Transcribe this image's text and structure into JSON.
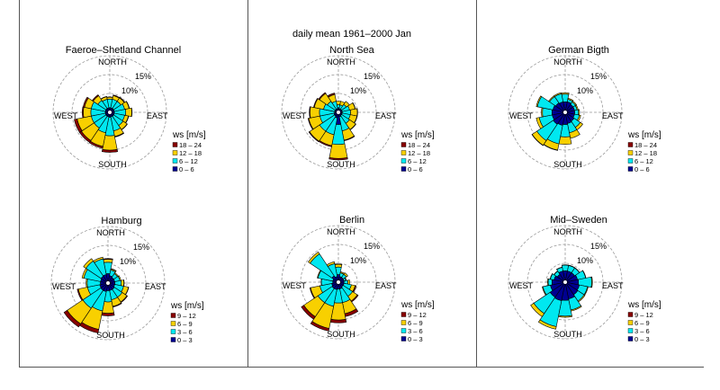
{
  "suptitle": "daily mean 1961–2000 Jan",
  "direction_labels": {
    "north": "NORTH",
    "south": "SOUTH",
    "east": "EAST",
    "west": "WEST"
  },
  "ring_labels": [
    "10%",
    "15%"
  ],
  "legend_title": "ws [m/s]",
  "colors": [
    "#000090",
    "#00e8f0",
    "#f8d000",
    "#880000"
  ],
  "chart_data": [
    {
      "type": "windrose",
      "title": "Faeroe–Shetland Channel",
      "legend": [
        "18 – 24",
        "12 – 18",
        "6 – 12",
        "0 – 6"
      ],
      "rings_percent": [
        5,
        10,
        15
      ],
      "directions": [
        "N",
        "NNE",
        "NE",
        "ENE",
        "E",
        "ESE",
        "SE",
        "SSE",
        "S",
        "SSW",
        "SW",
        "WSW",
        "W",
        "WNW",
        "NW",
        "NNW"
      ],
      "cumulative_percent": [
        [
          1.2,
          3.5,
          4.0,
          4.1
        ],
        [
          1.2,
          3.5,
          4.5,
          4.7
        ],
        [
          1.2,
          3.5,
          4.6,
          4.8
        ],
        [
          1.2,
          4.0,
          5.2,
          5.3
        ],
        [
          1.2,
          4.2,
          5.8,
          5.9
        ],
        [
          1.2,
          4.0,
          5.0,
          5.1
        ],
        [
          1.2,
          4.2,
          5.5,
          5.6
        ],
        [
          1.2,
          5.0,
          6.5,
          6.7
        ],
        [
          1.3,
          6.2,
          10.0,
          10.6
        ],
        [
          1.2,
          5.5,
          9.2,
          9.7
        ],
        [
          1.2,
          5.0,
          9.0,
          9.6
        ],
        [
          1.2,
          5.0,
          8.8,
          9.6
        ],
        [
          1.2,
          5.0,
          7.0,
          7.3
        ],
        [
          1.2,
          5.0,
          6.8,
          7.2
        ],
        [
          1.2,
          3.8,
          5.3,
          5.6
        ],
        [
          1.2,
          3.5,
          4.2,
          4.3
        ]
      ]
    },
    {
      "type": "windrose",
      "title": "North Sea",
      "legend": [
        "18 – 24",
        "12 – 18",
        "6 – 12",
        "0 – 6"
      ],
      "rings_percent": [
        5,
        10,
        15
      ],
      "directions": [
        "N",
        "NNE",
        "NE",
        "ENE",
        "E",
        "ESE",
        "SE",
        "SSE",
        "S",
        "SSW",
        "SW",
        "WSW",
        "W",
        "WNW",
        "NW",
        "NNW"
      ],
      "cumulative_percent": [
        [
          1.2,
          2.0,
          3.0,
          3.0
        ],
        [
          1.0,
          2.0,
          3.0,
          3.0
        ],
        [
          1.0,
          2.5,
          3.5,
          3.5
        ],
        [
          1.0,
          3.0,
          4.5,
          4.6
        ],
        [
          1.0,
          3.2,
          5.0,
          5.1
        ],
        [
          1.0,
          3.2,
          5.0,
          5.1
        ],
        [
          1.0,
          3.5,
          5.5,
          5.6
        ],
        [
          1.2,
          5.0,
          7.5,
          7.7
        ],
        [
          3.2,
          8.5,
          12.2,
          12.6
        ],
        [
          1.5,
          6.0,
          9.0,
          9.3
        ],
        [
          1.2,
          6.0,
          9.2,
          9.4
        ],
        [
          1.2,
          5.0,
          8.0,
          8.2
        ],
        [
          1.0,
          5.0,
          7.5,
          7.7
        ],
        [
          1.0,
          4.0,
          6.5,
          6.7
        ],
        [
          1.0,
          3.5,
          6.0,
          6.3
        ],
        [
          1.0,
          3.0,
          4.8,
          5.2
        ]
      ]
    },
    {
      "type": "windrose",
      "title": "German Bigth",
      "legend": [
        "18 – 24",
        "12 – 18",
        "6 – 12",
        "0 – 6"
      ],
      "rings_percent": [
        5,
        10,
        15
      ],
      "directions": [
        "N",
        "NNE",
        "NE",
        "ENE",
        "E",
        "ESE",
        "SE",
        "SSE",
        "S",
        "SSW",
        "SW",
        "WSW",
        "W",
        "WNW",
        "NW",
        "NNW"
      ],
      "cumulative_percent": [
        [
          2.8,
          4.8,
          5.2,
          5.2
        ],
        [
          2.8,
          3.5,
          3.8,
          3.8
        ],
        [
          2.5,
          3.3,
          3.6,
          3.6
        ],
        [
          2.5,
          3.2,
          3.5,
          3.5
        ],
        [
          2.5,
          3.5,
          3.8,
          3.8
        ],
        [
          2.5,
          3.8,
          4.2,
          4.2
        ],
        [
          2.8,
          4.8,
          5.6,
          5.6
        ],
        [
          3.0,
          5.5,
          7.0,
          7.0
        ],
        [
          3.2,
          6.5,
          8.5,
          8.5
        ],
        [
          3.5,
          8.5,
          10.2,
          10.3
        ],
        [
          3.8,
          9.0,
          10.5,
          10.6
        ],
        [
          3.5,
          7.0,
          7.8,
          7.8
        ],
        [
          3.5,
          6.0,
          6.3,
          6.3
        ],
        [
          3.3,
          7.5,
          7.8,
          7.8
        ],
        [
          3.0,
          5.0,
          5.3,
          5.3
        ],
        [
          2.8,
          5.0,
          5.3,
          5.3
        ]
      ]
    },
    {
      "type": "windrose",
      "title": "Hamburg",
      "legend": [
        "9 – 12",
        "6 – 9",
        "3 – 6",
        "0 – 3"
      ],
      "rings_percent": [
        5,
        10,
        15
      ],
      "directions": [
        "N",
        "NNE",
        "NE",
        "ENE",
        "E",
        "ESE",
        "SE",
        "SSE",
        "S",
        "SSW",
        "SW",
        "WSW",
        "W",
        "WNW",
        "NW",
        "NNW"
      ],
      "cumulative_percent": [
        [
          2.5,
          5.5,
          6.3,
          6.5
        ],
        [
          2.0,
          3.5,
          3.8,
          3.9
        ],
        [
          1.8,
          3.0,
          3.3,
          3.3
        ],
        [
          1.8,
          3.2,
          3.5,
          3.5
        ],
        [
          1.8,
          3.5,
          4.2,
          4.3
        ],
        [
          1.8,
          4.2,
          5.5,
          5.6
        ],
        [
          2.0,
          4.5,
          6.0,
          6.2
        ],
        [
          2.0,
          4.5,
          6.3,
          6.5
        ],
        [
          2.0,
          5.0,
          8.0,
          8.7
        ],
        [
          2.3,
          7.5,
          12.5,
          13.5
        ],
        [
          2.3,
          8.0,
          13.0,
          14.0
        ],
        [
          2.2,
          5.5,
          8.0,
          8.3
        ],
        [
          2.0,
          5.5,
          5.8,
          5.8
        ],
        [
          2.0,
          6.5,
          7.0,
          7.0
        ],
        [
          2.2,
          7.0,
          7.8,
          7.8
        ],
        [
          2.3,
          6.5,
          7.0,
          7.0
        ]
      ]
    },
    {
      "type": "windrose",
      "title": "Berlin",
      "legend": [
        "9 – 12",
        "6 – 9",
        "3 – 6",
        "0 – 3"
      ],
      "rings_percent": [
        5,
        10,
        15
      ],
      "directions": [
        "N",
        "NNE",
        "NE",
        "ENE",
        "E",
        "ESE",
        "SE",
        "SSE",
        "S",
        "SSW",
        "SW",
        "WSW",
        "W",
        "WNW",
        "NW",
        "NNW"
      ],
      "cumulative_percent": [
        [
          2.0,
          4.0,
          4.7,
          4.8
        ],
        [
          1.5,
          2.5,
          2.8,
          2.8
        ],
        [
          1.5,
          2.5,
          3.0,
          3.0
        ],
        [
          1.5,
          2.0,
          2.2,
          2.2
        ],
        [
          1.5,
          2.5,
          3.0,
          3.0
        ],
        [
          1.5,
          3.5,
          4.5,
          4.8
        ],
        [
          1.5,
          4.5,
          6.0,
          6.3
        ],
        [
          1.8,
          5.5,
          8.5,
          9.3
        ],
        [
          1.8,
          5.5,
          10.0,
          10.8
        ],
        [
          2.0,
          6.5,
          12.5,
          13.2
        ],
        [
          2.0,
          6.5,
          11.0,
          11.8
        ],
        [
          1.8,
          5.0,
          7.5,
          7.7
        ],
        [
          1.5,
          4.5,
          4.6,
          4.6
        ],
        [
          1.5,
          5.5,
          5.7,
          5.7
        ],
        [
          2.0,
          9.0,
          9.6,
          9.6
        ],
        [
          1.5,
          5.0,
          5.5,
          5.5
        ]
      ]
    },
    {
      "type": "windrose",
      "title": "Mid–Sweden",
      "legend": [
        "9 – 12",
        "6 – 9",
        "3 – 6",
        "0 – 3"
      ],
      "rings_percent": [
        5,
        10,
        15
      ],
      "directions": [
        "N",
        "NNE",
        "NE",
        "ENE",
        "E",
        "ESE",
        "SE",
        "SSE",
        "S",
        "SSW",
        "SW",
        "WSW",
        "W",
        "WNW",
        "NW",
        "NNW"
      ],
      "cumulative_percent": [
        [
          3.0,
          4.5,
          4.6,
          4.6
        ],
        [
          3.0,
          4.5,
          4.6,
          4.6
        ],
        [
          3.0,
          4.5,
          4.6,
          4.6
        ],
        [
          3.3,
          5.5,
          5.6,
          5.6
        ],
        [
          3.5,
          7.0,
          7.2,
          7.2
        ],
        [
          3.8,
          6.0,
          6.2,
          6.2
        ],
        [
          4.0,
          6.0,
          6.3,
          6.3
        ],
        [
          4.5,
          7.5,
          7.8,
          7.8
        ],
        [
          4.8,
          9.0,
          9.3,
          9.3
        ],
        [
          5.0,
          12.0,
          12.7,
          12.7
        ],
        [
          4.8,
          10.0,
          11.0,
          11.0
        ],
        [
          4.0,
          6.0,
          6.2,
          6.2
        ],
        [
          3.5,
          4.5,
          4.7,
          4.7
        ],
        [
          3.0,
          4.0,
          4.1,
          4.1
        ],
        [
          2.5,
          3.5,
          3.6,
          3.6
        ],
        [
          3.0,
          4.0,
          4.1,
          4.1
        ]
      ]
    }
  ]
}
